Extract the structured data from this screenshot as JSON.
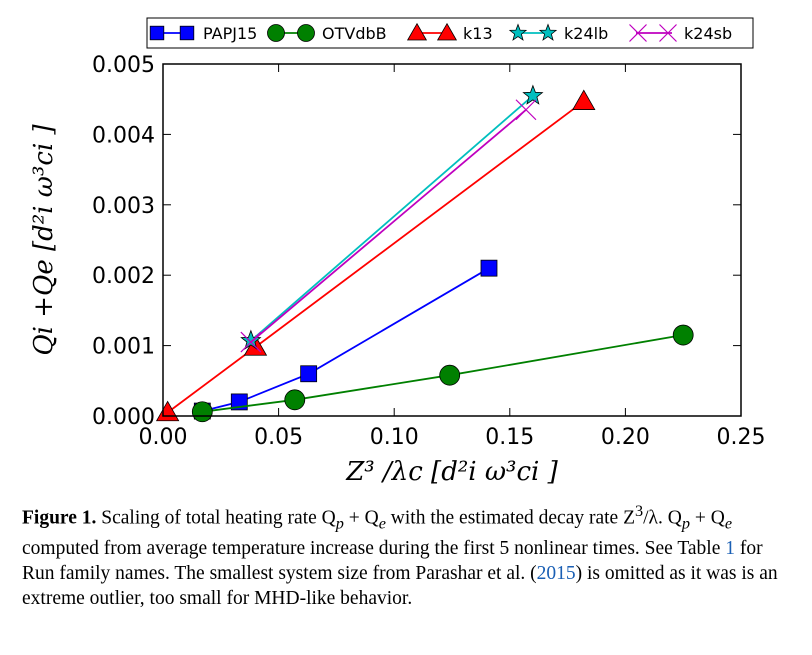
{
  "chart_data": {
    "type": "line",
    "xlabel": "Z³ /λc  [d²i ω³ci ]",
    "ylabel": "Qi +Qe  [d²i ω³ci ]",
    "xlim": [
      0.0,
      0.25
    ],
    "ylim": [
      0.0,
      0.005
    ],
    "xticks": [
      "0.00",
      "0.05",
      "0.10",
      "0.15",
      "0.20",
      "0.25"
    ],
    "yticks": [
      "0.000",
      "0.001",
      "0.002",
      "0.003",
      "0.004",
      "0.005"
    ],
    "xtick_values": [
      0.0,
      0.05,
      0.1,
      0.15,
      0.2,
      0.25
    ],
    "ytick_values": [
      0.0,
      0.001,
      0.002,
      0.003,
      0.004,
      0.005
    ],
    "grid": false,
    "legend_position": "top",
    "series": [
      {
        "name": "PAPJ15",
        "color": "#0000ff",
        "marker": "square",
        "x": [
          0.017,
          0.033,
          0.063,
          0.141
        ],
        "y": [
          7e-05,
          0.0002,
          0.0006,
          0.0021
        ]
      },
      {
        "name": "OTVdbB",
        "color": "#008000",
        "marker": "circle",
        "x": [
          0.017,
          0.057,
          0.124,
          0.225
        ],
        "y": [
          6e-05,
          0.00023,
          0.00058,
          0.00115
        ]
      },
      {
        "name": "k13",
        "color": "#ff0000",
        "marker": "triangle",
        "x": [
          0.002,
          0.04,
          0.182
        ],
        "y": [
          5e-05,
          0.00098,
          0.00447
        ]
      },
      {
        "name": "k24lb",
        "color": "#00bfbf",
        "marker": "star",
        "x": [
          0.038,
          0.16
        ],
        "y": [
          0.00107,
          0.00455
        ]
      },
      {
        "name": "k24sb",
        "color": "#bf00bf",
        "marker": "x",
        "x": [
          0.038,
          0.157
        ],
        "y": [
          0.00105,
          0.00435
        ]
      }
    ]
  },
  "caption": {
    "label": "Figure 1.",
    "text_1": " Scaling of total heating rate Q",
    "sub_p": "p",
    "text_2": " + Q",
    "sub_e": "e",
    "text_3": " with the estimated decay rate Z",
    "sup_3": "3",
    "text_4": "/λ. Q",
    "sub_p2": "p",
    "text_5": " + Q",
    "sub_e2": "e",
    "text_6": " computed from average temperature increase during the first 5 nonlinear times. See Table ",
    "ref_table": "1",
    "text_7": " for Run family names. The smallest system size from Parashar et al. (",
    "ref_year": "2015",
    "text_8": ") is omitted as it was is an extreme outlier, too small for MHD-like behavior."
  }
}
